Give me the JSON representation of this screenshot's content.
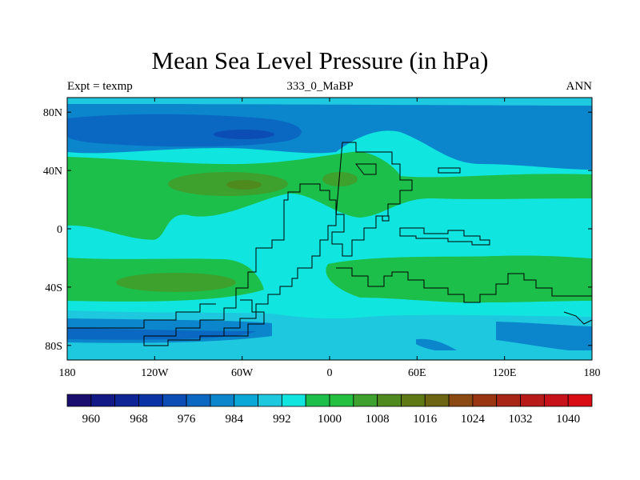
{
  "title": "Mean Sea Level Pressure (in hPa)",
  "subtitle_left": "Expt = texmp",
  "subtitle_center": "333_0_MaBP",
  "subtitle_right": "ANN",
  "lat_ticks": [
    {
      "value": 80,
      "label": "80N"
    },
    {
      "value": 40,
      "label": "40N"
    },
    {
      "value": 0,
      "label": "0"
    },
    {
      "value": -40,
      "label": "40S"
    },
    {
      "value": -80,
      "label": "80S"
    }
  ],
  "lon_ticks": [
    {
      "value": -180,
      "label": "180"
    },
    {
      "value": -120,
      "label": "120W"
    },
    {
      "value": -60,
      "label": "60W"
    },
    {
      "value": 0,
      "label": "0"
    },
    {
      "value": 60,
      "label": "60E"
    },
    {
      "value": 120,
      "label": "120E"
    },
    {
      "value": 180,
      "label": "180"
    }
  ],
  "colorbar": {
    "labels": [
      "960",
      "968",
      "976",
      "984",
      "992",
      "1000",
      "1008",
      "1016",
      "1024",
      "1032",
      "1040"
    ],
    "colors": [
      "#1b0f6e",
      "#131a85",
      "#0e2596",
      "#0a34a6",
      "#0b4db5",
      "#0a68c2",
      "#0b86cc",
      "#0aa8d7",
      "#1ec8df",
      "#11e5e0",
      "#1dbf4b",
      "#23c040",
      "#3ea02d",
      "#4f8a1e",
      "#5f7a14",
      "#6e6512",
      "#8a4a12",
      "#9a3512",
      "#a82616",
      "#b81a18",
      "#c8121a",
      "#d80c12"
    ]
  }
}
